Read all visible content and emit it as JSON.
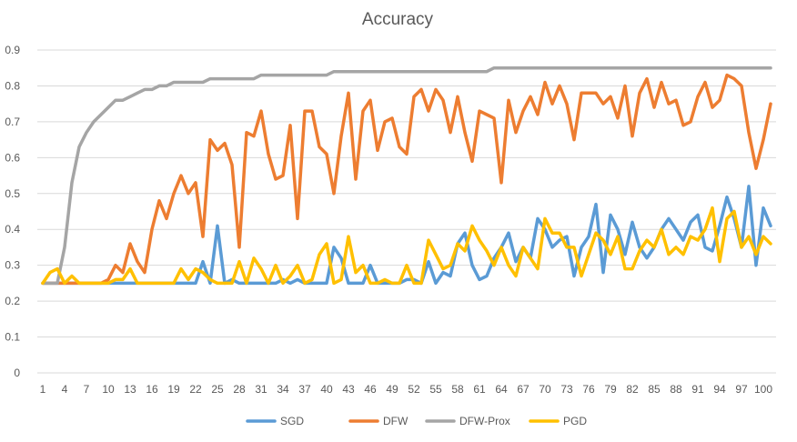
{
  "chart_data": {
    "type": "line",
    "title": "Accuracy",
    "xlabel": "",
    "ylabel": "",
    "ylim": [
      0,
      0.9
    ],
    "y_ticks": [
      "0",
      "0.1",
      "0.2",
      "0.3",
      "0.4",
      "0.5",
      "0.6",
      "0.7",
      "0.8",
      "0.9"
    ],
    "x_tick_labels": [
      "1",
      "4",
      "7",
      "10",
      "13",
      "16",
      "19",
      "22",
      "25",
      "28",
      "31",
      "34",
      "37",
      "40",
      "43",
      "46",
      "49",
      "52",
      "55",
      "58",
      "61",
      "64",
      "67",
      "70",
      "73",
      "76",
      "79",
      "82",
      "85",
      "88",
      "91",
      "94",
      "97",
      "100"
    ],
    "x": [
      1,
      2,
      3,
      4,
      5,
      6,
      7,
      8,
      9,
      10,
      11,
      12,
      13,
      14,
      15,
      16,
      17,
      18,
      19,
      20,
      21,
      22,
      23,
      24,
      25,
      26,
      27,
      28,
      29,
      30,
      31,
      32,
      33,
      34,
      35,
      36,
      37,
      38,
      39,
      40,
      41,
      42,
      43,
      44,
      45,
      46,
      47,
      48,
      49,
      50,
      51,
      52,
      53,
      54,
      55,
      56,
      57,
      58,
      59,
      60,
      61,
      62,
      63,
      64,
      65,
      66,
      67,
      68,
      69,
      70,
      71,
      72,
      73,
      74,
      75,
      76,
      77,
      78,
      79,
      80,
      81,
      82,
      83,
      84,
      85,
      86,
      87,
      88,
      89,
      90,
      91,
      92,
      93,
      94,
      95,
      96,
      97,
      98,
      99,
      100,
      101
    ],
    "grid": true,
    "legend_position": "bottom",
    "series": [
      {
        "name": "SGD",
        "color": "#5B9BD5",
        "values": [
          0.25,
          0.25,
          0.25,
          0.25,
          0.25,
          0.25,
          0.25,
          0.25,
          0.25,
          0.25,
          0.25,
          0.25,
          0.25,
          0.25,
          0.25,
          0.25,
          0.25,
          0.25,
          0.25,
          0.25,
          0.25,
          0.25,
          0.31,
          0.25,
          0.41,
          0.25,
          0.26,
          0.25,
          0.25,
          0.25,
          0.25,
          0.25,
          0.25,
          0.26,
          0.25,
          0.26,
          0.25,
          0.25,
          0.25,
          0.25,
          0.35,
          0.32,
          0.25,
          0.25,
          0.25,
          0.3,
          0.25,
          0.25,
          0.25,
          0.25,
          0.26,
          0.26,
          0.25,
          0.31,
          0.25,
          0.28,
          0.27,
          0.36,
          0.39,
          0.3,
          0.26,
          0.27,
          0.32,
          0.35,
          0.39,
          0.31,
          0.35,
          0.32,
          0.43,
          0.4,
          0.35,
          0.37,
          0.38,
          0.27,
          0.35,
          0.38,
          0.47,
          0.28,
          0.44,
          0.4,
          0.33,
          0.42,
          0.35,
          0.32,
          0.35,
          0.4,
          0.43,
          0.4,
          0.37,
          0.42,
          0.44,
          0.35,
          0.34,
          0.41,
          0.49,
          0.43,
          0.35,
          0.52,
          0.3,
          0.46,
          0.41
        ]
      },
      {
        "name": "DFW",
        "color": "#ED7D31",
        "values": [
          0.25,
          0.25,
          0.25,
          0.25,
          0.25,
          0.25,
          0.25,
          0.25,
          0.25,
          0.26,
          0.3,
          0.28,
          0.36,
          0.31,
          0.28,
          0.4,
          0.48,
          0.43,
          0.5,
          0.55,
          0.5,
          0.53,
          0.38,
          0.65,
          0.62,
          0.64,
          0.58,
          0.35,
          0.67,
          0.66,
          0.73,
          0.61,
          0.54,
          0.55,
          0.69,
          0.43,
          0.73,
          0.73,
          0.63,
          0.61,
          0.5,
          0.66,
          0.78,
          0.54,
          0.73,
          0.76,
          0.62,
          0.7,
          0.71,
          0.63,
          0.61,
          0.77,
          0.79,
          0.73,
          0.79,
          0.76,
          0.67,
          0.77,
          0.67,
          0.59,
          0.73,
          0.72,
          0.71,
          0.53,
          0.76,
          0.67,
          0.73,
          0.77,
          0.72,
          0.81,
          0.75,
          0.8,
          0.75,
          0.65,
          0.78,
          0.78,
          0.78,
          0.75,
          0.77,
          0.71,
          0.8,
          0.66,
          0.78,
          0.82,
          0.74,
          0.81,
          0.75,
          0.76,
          0.69,
          0.7,
          0.77,
          0.81,
          0.74,
          0.76,
          0.83,
          0.82,
          0.8,
          0.67,
          0.57,
          0.65,
          0.75
        ]
      },
      {
        "name": "DFW-Prox",
        "color": "#A5A5A5",
        "values": [
          0.25,
          0.25,
          0.25,
          0.35,
          0.53,
          0.63,
          0.67,
          0.7,
          0.72,
          0.74,
          0.76,
          0.76,
          0.77,
          0.78,
          0.79,
          0.79,
          0.8,
          0.8,
          0.81,
          0.81,
          0.81,
          0.81,
          0.81,
          0.82,
          0.82,
          0.82,
          0.82,
          0.82,
          0.82,
          0.82,
          0.83,
          0.83,
          0.83,
          0.83,
          0.83,
          0.83,
          0.83,
          0.83,
          0.83,
          0.83,
          0.84,
          0.84,
          0.84,
          0.84,
          0.84,
          0.84,
          0.84,
          0.84,
          0.84,
          0.84,
          0.84,
          0.84,
          0.84,
          0.84,
          0.84,
          0.84,
          0.84,
          0.84,
          0.84,
          0.84,
          0.84,
          0.84,
          0.85,
          0.85,
          0.85,
          0.85,
          0.85,
          0.85,
          0.85,
          0.85,
          0.85,
          0.85,
          0.85,
          0.85,
          0.85,
          0.85,
          0.85,
          0.85,
          0.85,
          0.85,
          0.85,
          0.85,
          0.85,
          0.85,
          0.85,
          0.85,
          0.85,
          0.85,
          0.85,
          0.85,
          0.85,
          0.85,
          0.85,
          0.85,
          0.85,
          0.85,
          0.85,
          0.85,
          0.85,
          0.85,
          0.85
        ]
      },
      {
        "name": "PGD",
        "color": "#FFC000",
        "values": [
          0.25,
          0.28,
          0.29,
          0.25,
          0.27,
          0.25,
          0.25,
          0.25,
          0.25,
          0.25,
          0.26,
          0.26,
          0.29,
          0.25,
          0.25,
          0.25,
          0.25,
          0.25,
          0.25,
          0.29,
          0.26,
          0.29,
          0.28,
          0.26,
          0.25,
          0.25,
          0.25,
          0.31,
          0.25,
          0.32,
          0.29,
          0.25,
          0.3,
          0.25,
          0.27,
          0.3,
          0.25,
          0.26,
          0.33,
          0.36,
          0.25,
          0.26,
          0.38,
          0.28,
          0.3,
          0.25,
          0.25,
          0.26,
          0.25,
          0.25,
          0.3,
          0.25,
          0.25,
          0.37,
          0.33,
          0.29,
          0.3,
          0.36,
          0.34,
          0.41,
          0.37,
          0.34,
          0.3,
          0.35,
          0.3,
          0.27,
          0.35,
          0.32,
          0.29,
          0.43,
          0.39,
          0.39,
          0.35,
          0.35,
          0.27,
          0.33,
          0.39,
          0.37,
          0.33,
          0.38,
          0.29,
          0.29,
          0.34,
          0.37,
          0.35,
          0.4,
          0.33,
          0.35,
          0.33,
          0.38,
          0.37,
          0.4,
          0.46,
          0.31,
          0.43,
          0.45,
          0.35,
          0.38,
          0.33,
          0.38,
          0.36
        ]
      }
    ]
  }
}
